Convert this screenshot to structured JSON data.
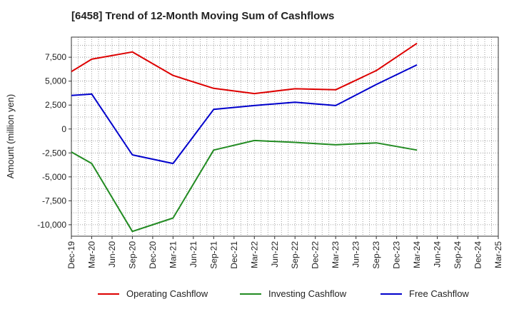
{
  "chart_data": {
    "type": "line",
    "title": "[6458]  Trend of 12-Month Moving Sum of Cashflows",
    "ylabel": "Amount (million yen)",
    "xlabel": "",
    "categories": [
      "Dec-19",
      "Mar-20",
      "Jun-20",
      "Sep-20",
      "Dec-20",
      "Mar-21",
      "Jun-21",
      "Sep-21",
      "Dec-21",
      "Mar-22",
      "Jun-22",
      "Sep-22",
      "Dec-22",
      "Mar-23",
      "Jun-23",
      "Sep-23",
      "Dec-23",
      "Mar-24",
      "Jun-24",
      "Sep-24",
      "Dec-24",
      "Mar-25"
    ],
    "ylim": [
      -11200,
      9600
    ],
    "yticks": [
      7500,
      5000,
      2500,
      0,
      -2500,
      -5000,
      -7500,
      -10000
    ],
    "ytick_labels": [
      "7,500",
      "5,000",
      "2,500",
      "0",
      "-2,500",
      "-5,000",
      "-7,500",
      "-10,000"
    ],
    "grid": true,
    "legend_position": "bottom",
    "series": [
      {
        "name": "Operating Cashflow",
        "color": "#dd0000",
        "values": [
          6000,
          7300,
          null,
          8050,
          null,
          5600,
          null,
          4250,
          null,
          3700,
          null,
          4200,
          null,
          4100,
          null,
          6100,
          null,
          8950,
          null,
          null,
          null,
          null
        ]
      },
      {
        "name": "Investing Cashflow",
        "color": "#228b22",
        "values": [
          -2400,
          -3600,
          null,
          -10700,
          null,
          -9300,
          null,
          -2200,
          null,
          -1200,
          null,
          -1400,
          null,
          -1650,
          null,
          -1450,
          null,
          -2200,
          null,
          null,
          null,
          null
        ]
      },
      {
        "name": "Free Cashflow",
        "color": "#0000cc",
        "values": [
          3500,
          3650,
          null,
          -2700,
          null,
          -3600,
          null,
          2050,
          null,
          2450,
          null,
          2800,
          null,
          2450,
          null,
          4650,
          null,
          6700,
          null,
          null,
          null,
          null
        ]
      }
    ]
  }
}
